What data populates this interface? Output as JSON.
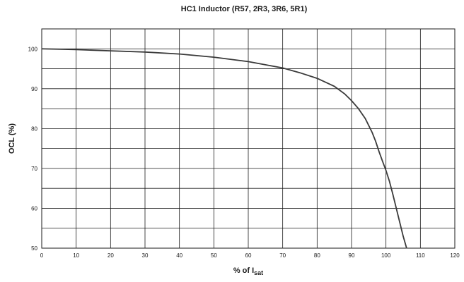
{
  "chart_data": {
    "type": "line",
    "title": "HC1 Inductor (R57, 2R3, 3R6, 5R1)",
    "xlabel_main": "% of I",
    "xlabel_sub": "sat",
    "ylabel": "OCL (%)",
    "xlim": [
      0,
      120
    ],
    "ylim": [
      50,
      105
    ],
    "x_ticks": [
      0,
      10,
      20,
      30,
      40,
      50,
      60,
      70,
      80,
      90,
      100,
      110,
      120
    ],
    "y_ticks": [
      50,
      60,
      70,
      80,
      90,
      100
    ],
    "x_grid_step": 10,
    "y_grid_step": 5,
    "grid": true,
    "colors": {
      "line": "#3a3a3a",
      "grid": "#1a1a1a",
      "text": "#1a1a1a"
    },
    "series": [
      {
        "x": [
          0,
          10,
          20,
          30,
          40,
          50,
          60,
          65,
          70,
          75,
          80,
          85,
          88,
          90,
          92,
          94,
          96,
          97,
          98,
          99,
          100,
          101,
          102,
          103,
          104,
          105,
          106
        ],
        "y": [
          100,
          99.8,
          99.5,
          99.2,
          98.7,
          97.9,
          96.8,
          96.0,
          95.2,
          94.0,
          92.6,
          90.6,
          88.7,
          87.0,
          85.0,
          82.5,
          79.0,
          76.8,
          74.2,
          71.8,
          69.5,
          66.8,
          63.5,
          60.0,
          56.5,
          53.0,
          50.0
        ]
      }
    ]
  }
}
